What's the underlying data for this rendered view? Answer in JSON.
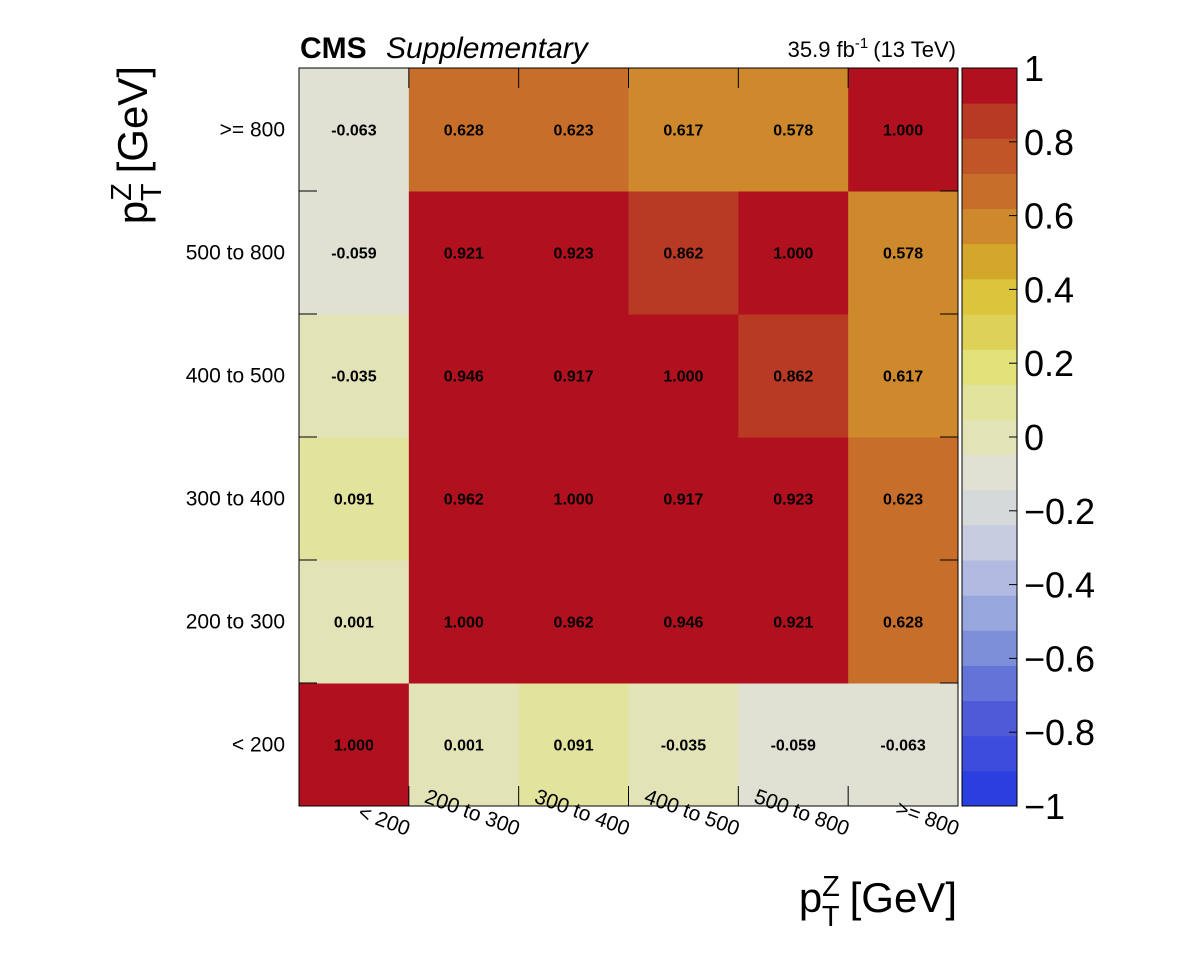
{
  "header": {
    "experiment": "CMS",
    "label": "Supplementary",
    "lumi_value": "35.9 fb",
    "lumi_exp": "-1",
    "energy": "(13 TeV)"
  },
  "chart_data": {
    "type": "heatmap",
    "x_categories": [
      "< 200",
      "200 to 300",
      "300 to 400",
      "400 to 500",
      "500 to 800",
      ">= 800"
    ],
    "y_categories": [
      "< 200",
      "200 to 300",
      "300 to 400",
      "400 to 500",
      "500 to 800",
      ">= 800"
    ],
    "values": [
      [
        1.0,
        0.001,
        0.091,
        -0.035,
        -0.059,
        -0.063
      ],
      [
        0.001,
        1.0,
        0.962,
        0.946,
        0.921,
        0.628
      ],
      [
        0.091,
        0.962,
        1.0,
        0.917,
        0.923,
        0.623
      ],
      [
        -0.035,
        0.946,
        0.917,
        1.0,
        0.862,
        0.617
      ],
      [
        -0.059,
        0.921,
        0.923,
        0.862,
        1.0,
        0.578
      ],
      [
        -0.063,
        0.628,
        0.623,
        0.617,
        0.578,
        1.0
      ]
    ],
    "cell_labels": [
      [
        "1.000",
        "0.001",
        "0.091",
        "-0.035",
        "-0.059",
        "-0.063"
      ],
      [
        "0.001",
        "1.000",
        "0.962",
        "0.946",
        "0.921",
        "0.628"
      ],
      [
        "0.091",
        "0.962",
        "1.000",
        "0.917",
        "0.923",
        "0.623"
      ],
      [
        "-0.035",
        "0.946",
        "0.917",
        "1.000",
        "0.862",
        "0.617"
      ],
      [
        "-0.059",
        "0.921",
        "0.923",
        "0.862",
        "1.000",
        "0.578"
      ],
      [
        "-0.063",
        "0.628",
        "0.623",
        "0.617",
        "0.578",
        "1.000"
      ]
    ],
    "xlabel": {
      "main": "p",
      "sup": "Z",
      "sub": "T",
      "unit": "[GeV]"
    },
    "ylabel": {
      "main": "p",
      "sup": "Z",
      "sub": "T",
      "unit": "[GeV]"
    },
    "zlim": [
      -1,
      1
    ],
    "palette_ticks": [
      "1",
      "0.8",
      "0.6",
      "0.4",
      "0.2",
      "0",
      "−0.2",
      "−0.4",
      "−0.6",
      "−0.8",
      "−1"
    ],
    "palette_tick_values": [
      1,
      0.8,
      0.6,
      0.4,
      0.2,
      0,
      -0.2,
      -0.4,
      -0.6,
      -0.8,
      -1
    ],
    "palette_colors": [
      "#2b3fe0",
      "#3d4cdc",
      "#4f5ad9",
      "#6373d8",
      "#7e8fda",
      "#98a6de",
      "#b1bbe2",
      "#c7cbe0",
      "#d5d9da",
      "#e0e0d3",
      "#e2e4b8",
      "#e2e49e",
      "#e2e17a",
      "#ddd158",
      "#dcc53a",
      "#d3a62c",
      "#cd892c",
      "#c86e2b",
      "#c05527",
      "#b93a24",
      "#b1101e"
    ],
    "grid": false
  }
}
